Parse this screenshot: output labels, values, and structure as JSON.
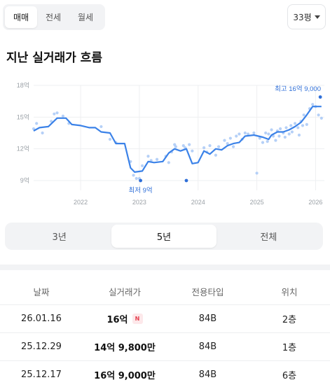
{
  "deal_tabs": [
    "매매",
    "전세",
    "월세"
  ],
  "area": "33평",
  "section_title": "지난 실거래가 흐름",
  "chart_data": {
    "type": "line",
    "y_ticks": [
      "18억",
      "15억",
      "12억",
      "9억"
    ],
    "y_tick_values": [
      18,
      15,
      12,
      9
    ],
    "x_ticks": [
      "2022",
      "2023",
      "2024",
      "2025",
      "2026"
    ],
    "x_tick_values": [
      2022,
      2023,
      2024,
      2025,
      2026
    ],
    "ylim": [
      9,
      18
    ],
    "xlim": [
      2021.2,
      2026.15
    ],
    "grid": true,
    "annotations": {
      "max_label": "최고 16억 9,000",
      "min_label": "최저 9억"
    },
    "colors": {
      "line": "#3b82e8",
      "point": "#a8c8f6",
      "accent": "#2f6fd8"
    },
    "series": [
      {
        "values": [
          [
            2021.2,
            13.7
          ],
          [
            2021.3,
            14.0
          ],
          [
            2021.45,
            14.1
          ],
          [
            2021.6,
            14.9
          ],
          [
            2021.75,
            14.9
          ],
          [
            2021.85,
            14.3
          ],
          [
            2022.0,
            14.2
          ],
          [
            2022.15,
            14.0
          ],
          [
            2022.25,
            14.0
          ],
          [
            2022.35,
            13.6
          ],
          [
            2022.5,
            13.5
          ],
          [
            2022.6,
            12.5
          ],
          [
            2022.75,
            12.5
          ],
          [
            2022.85,
            10.2
          ],
          [
            2022.92,
            9.8
          ],
          [
            2023.05,
            9.9
          ],
          [
            2023.15,
            10.8
          ],
          [
            2023.25,
            10.7
          ],
          [
            2023.4,
            10.8
          ],
          [
            2023.5,
            11.6
          ],
          [
            2023.6,
            12.0
          ],
          [
            2023.7,
            11.8
          ],
          [
            2023.8,
            12.0
          ],
          [
            2023.9,
            10.6
          ],
          [
            2024.0,
            10.7
          ],
          [
            2024.1,
            11.8
          ],
          [
            2024.2,
            11.5
          ],
          [
            2024.3,
            12.0
          ],
          [
            2024.4,
            11.9
          ],
          [
            2024.5,
            12.3
          ],
          [
            2024.6,
            12.5
          ],
          [
            2024.7,
            12.6
          ],
          [
            2024.8,
            13.2
          ],
          [
            2024.95,
            13.3
          ],
          [
            2025.1,
            13.1
          ],
          [
            2025.2,
            12.9
          ],
          [
            2025.25,
            13.3
          ],
          [
            2025.35,
            13.6
          ],
          [
            2025.45,
            13.6
          ],
          [
            2025.55,
            13.8
          ],
          [
            2025.65,
            14.1
          ],
          [
            2025.75,
            14.5
          ],
          [
            2025.85,
            15.2
          ],
          [
            2025.95,
            16.0
          ],
          [
            2026.1,
            16.0
          ]
        ]
      },
      {
        "values": [
          [
            2021.2,
            13.9
          ],
          [
            2021.25,
            14.4
          ],
          [
            2021.35,
            13.5
          ],
          [
            2021.5,
            14.6
          ],
          [
            2021.55,
            15.3
          ],
          [
            2021.6,
            15.4
          ],
          [
            2021.7,
            15.1
          ],
          [
            2021.8,
            14.4
          ],
          [
            2022.35,
            14.1
          ],
          [
            2022.5,
            12.9
          ],
          [
            2022.6,
            12.6
          ],
          [
            2022.85,
            10.8
          ],
          [
            2022.9,
            9.5
          ],
          [
            2022.95,
            9.2
          ],
          [
            2023.0,
            9.2
          ],
          [
            2023.05,
            10.4
          ],
          [
            2023.15,
            11.3
          ],
          [
            2023.2,
            10.9
          ],
          [
            2023.3,
            11.0
          ],
          [
            2023.45,
            11.3
          ],
          [
            2023.5,
            10.7
          ],
          [
            2023.55,
            11.7
          ],
          [
            2023.6,
            12.4
          ],
          [
            2023.62,
            12.2
          ],
          [
            2023.75,
            12.3
          ],
          [
            2023.78,
            12.1
          ],
          [
            2023.85,
            12.4
          ],
          [
            2023.9,
            11.8
          ],
          [
            2024.1,
            12.1
          ],
          [
            2024.15,
            11.7
          ],
          [
            2024.2,
            12.3
          ],
          [
            2024.3,
            11.4
          ],
          [
            2024.35,
            12.2
          ],
          [
            2024.45,
            12.8
          ],
          [
            2024.5,
            12.5
          ],
          [
            2024.55,
            13.0
          ],
          [
            2024.6,
            12.2
          ],
          [
            2024.65,
            13.2
          ],
          [
            2024.7,
            13.4
          ],
          [
            2024.75,
            12.9
          ],
          [
            2024.8,
            13.5
          ],
          [
            2024.85,
            13.4
          ],
          [
            2024.95,
            13.5
          ],
          [
            2025.05,
            13.0
          ],
          [
            2025.1,
            12.6
          ],
          [
            2025.15,
            13.5
          ],
          [
            2025.18,
            12.7
          ],
          [
            2025.2,
            13.4
          ],
          [
            2025.25,
            13.8
          ],
          [
            2025.28,
            13.2
          ],
          [
            2025.32,
            12.8
          ],
          [
            2025.35,
            13.7
          ],
          [
            2025.38,
            13.2
          ],
          [
            2025.4,
            13.9
          ],
          [
            2025.45,
            13.5
          ],
          [
            2025.48,
            13.1
          ],
          [
            2025.5,
            14.0
          ],
          [
            2025.55,
            13.4
          ],
          [
            2025.58,
            14.2
          ],
          [
            2025.6,
            13.6
          ],
          [
            2025.65,
            14.4
          ],
          [
            2025.7,
            14.0
          ],
          [
            2025.72,
            13.3
          ],
          [
            2025.75,
            14.6
          ],
          [
            2025.78,
            14.2
          ],
          [
            2025.8,
            15.2
          ],
          [
            2025.85,
            14.3
          ],
          [
            2025.9,
            15.8
          ],
          [
            2025.95,
            16.2
          ],
          [
            2026.0,
            16.0
          ],
          [
            2026.05,
            15.2
          ],
          [
            2026.08,
            16.9
          ],
          [
            2026.1,
            14.9
          ],
          [
            2025.0,
            9.7
          ]
        ]
      },
      {
        "values": [
          [
            2023.02,
            9.0
          ],
          [
            2023.8,
            9.0
          ],
          [
            2026.08,
            16.9
          ]
        ]
      }
    ]
  },
  "period_tabs": [
    "3년",
    "5년",
    "전체"
  ],
  "table": {
    "headers": [
      "날짜",
      "실거래가",
      "전용타입",
      "위치"
    ],
    "rows": [
      {
        "date": "26.01.16",
        "price": "16억",
        "badge": "N",
        "type": "84B",
        "floor": "2층"
      },
      {
        "date": "25.12.29",
        "price": "14억 9,800만",
        "badge": "",
        "type": "84B",
        "floor": "1층"
      },
      {
        "date": "25.12.17",
        "price": "16억 9,000만",
        "badge": "",
        "type": "84B",
        "floor": "6층"
      }
    ]
  }
}
